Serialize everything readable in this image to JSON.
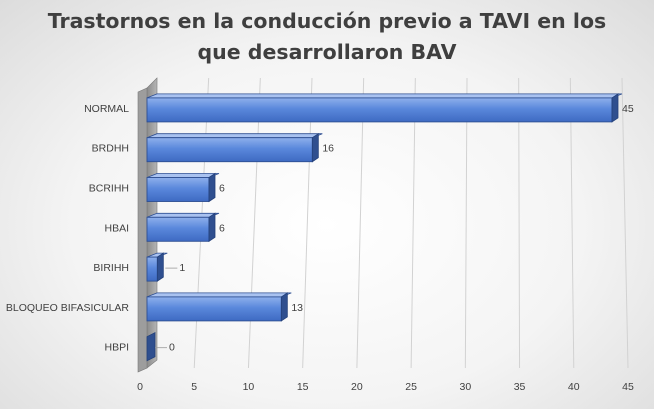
{
  "chart_data": {
    "type": "bar",
    "orientation": "horizontal",
    "title": "Trastornos en la conducción previo a TAVI en los\nque desarrollaron BAV",
    "categories": [
      "NORMAL",
      "BRDHH",
      "BCRIHH",
      "HBAI",
      "BIRIHH",
      "BLOQUEO BIFASICULAR",
      "HBPI"
    ],
    "values": [
      45,
      16,
      6,
      6,
      1,
      13,
      0
    ],
    "xlim": [
      0,
      45
    ],
    "xticks": [
      0,
      5,
      10,
      15,
      20,
      25,
      30,
      35,
      40,
      45
    ],
    "xlabel": "",
    "ylabel": "",
    "grid": true,
    "legend": "none",
    "style": "3d",
    "colors": {
      "bar": "#4f7fd6",
      "bar_side": "#2f4f8f",
      "text": "#404040",
      "title": "#3f3f3f"
    }
  }
}
